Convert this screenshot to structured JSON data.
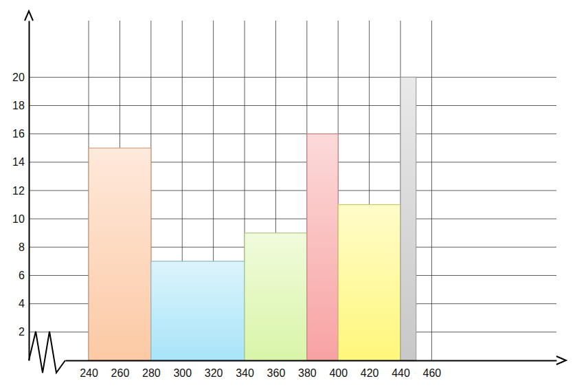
{
  "chart_data": {
    "type": "histogram",
    "bins": [
      240,
      280,
      340,
      380,
      400,
      440,
      450
    ],
    "values": [
      15,
      7,
      9,
      16,
      11,
      20
    ],
    "colors": [
      "#fcc9a4",
      "#a8e4f8",
      "#d9f5a8",
      "#f8a2a2",
      "#fff77a",
      "#c8c8c8"
    ],
    "xlim": [
      225,
      540
    ],
    "xticks": [
      240,
      260,
      280,
      300,
      320,
      340,
      360,
      380,
      400,
      420,
      440,
      460
    ],
    "ylim": [
      0,
      24
    ],
    "yticks": [
      2,
      4,
      6,
      8,
      10,
      12,
      14,
      16,
      18,
      20
    ],
    "grid": true
  }
}
